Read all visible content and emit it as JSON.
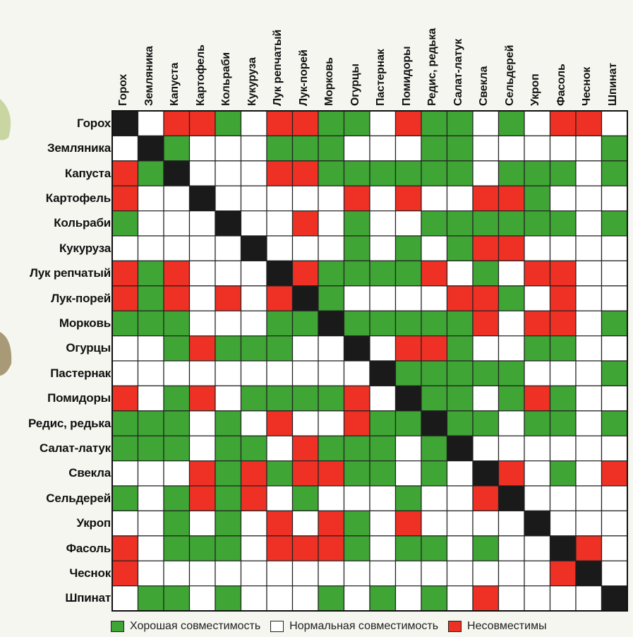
{
  "chart_data": {
    "type": "heatmap",
    "title": "",
    "categories": [
      "Горох",
      "Земляника",
      "Капуста",
      "Картофель",
      "Кольраби",
      "Кукуруза",
      "Лук репчатый",
      "Лук-порей",
      "Морковь",
      "Огурцы",
      "Пастернак",
      "Помидоры",
      "Редис, редька",
      "Салат-латук",
      "Свекла",
      "Сельдерей",
      "Укроп",
      "Фасоль",
      "Чеснок",
      "Шпинат"
    ],
    "matrix": [
      "XWBBGWBBGGWBGGWGWBBW",
      "WXGWWWGGGWWWGGWWWWWG",
      "BGXWWWBBGGGGGGWGGGWG",
      "BWWXWWWWWBWBWWBBGWWW",
      "GWWWXWWBWGWWGGGGGGWG",
      "WWWWWXWWWGWGWGBBWWWW",
      "BGBWWWXBGGGGBWGWBBWW",
      "BGBWBWBXGWWWWBBGWBWW",
      "GGGWWWGGXGGGGGBWBBWG",
      "WWGBGGGWWXWBBGWWGGWW",
      "WWWWWWWWWWXGGGGGWWWG",
      "BWGBWGGGGBWXGGWGBGWW",
      "GGGWGWBWWBGGXGGWGGWG",
      "GGGWGGWBGGGWGXWWWWWW",
      "WWWBGBGBBGGWGWXBWGWB",
      "GWGBGBWGWWWGWWBXWWWW",
      "WWGWGWBWBGWBWWWWXWWW",
      "BWGGGWBBBGWGGWGWWXBW",
      "BWWWWWWWWWWWWWWWWBXW",
      "WGGWGWWWGWGWGWBWWWWX"
    ],
    "legend": [
      {
        "key": "G",
        "label": "Хорошая совместимость",
        "color": "#3fa535"
      },
      {
        "key": "W",
        "label": "Нормальная совместимость",
        "color": "#ffffff"
      },
      {
        "key": "B",
        "label": "Несовместимы",
        "color": "#ee3124"
      }
    ],
    "diagonal_color": "#1a1a1a",
    "grid": true,
    "legend_position": "bottom"
  }
}
